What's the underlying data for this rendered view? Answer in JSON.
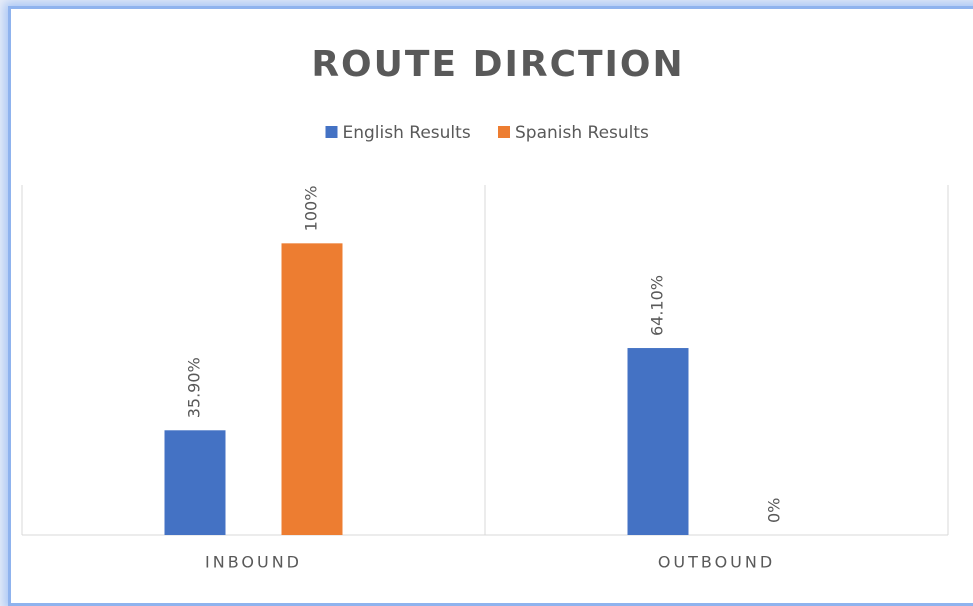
{
  "chart_data": {
    "type": "bar",
    "title": "ROUTE DIRCTION",
    "categories": [
      "INBOUND",
      "OUTBOUND"
    ],
    "series": [
      {
        "name": "English Results",
        "color": "#4472c4",
        "values": [
          35.9,
          64.1
        ],
        "value_labels": [
          "35.90%",
          "64.10%"
        ]
      },
      {
        "name": "Spanish Results",
        "color": "#ed7d31",
        "values": [
          100,
          0
        ],
        "value_labels": [
          "100%",
          "0%"
        ]
      }
    ],
    "ylim": [
      0,
      120
    ],
    "legend": "top"
  }
}
